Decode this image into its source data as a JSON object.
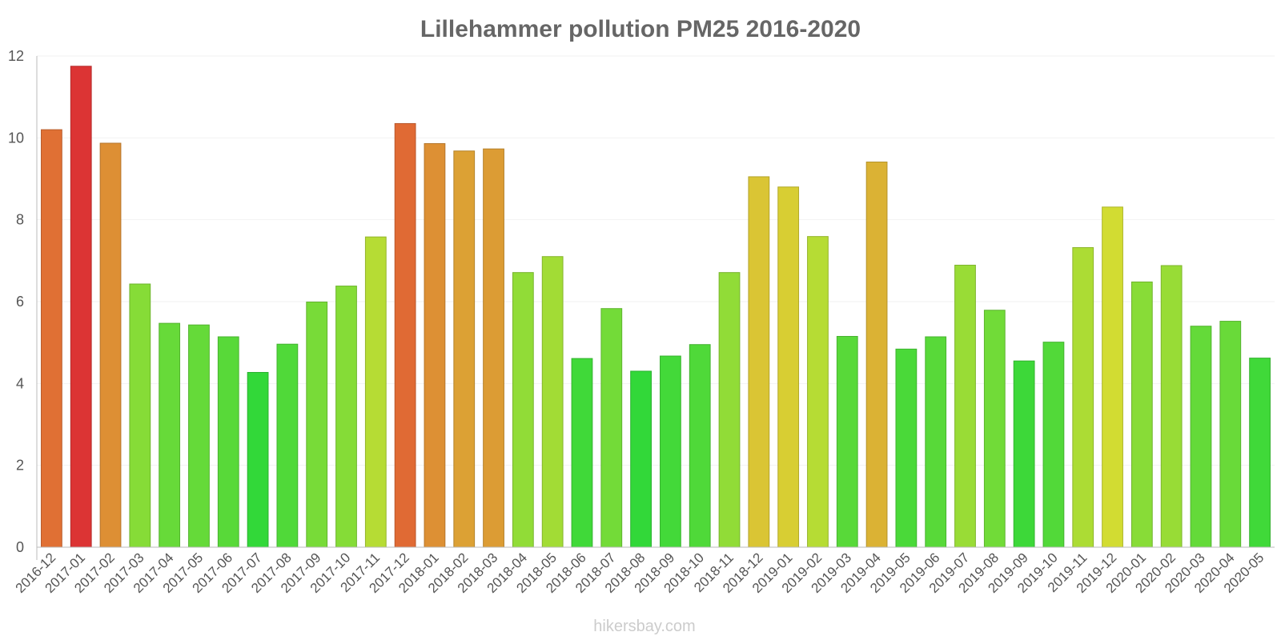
{
  "chart_data": {
    "type": "bar",
    "title": "Lillehammer pollution PM25 2016-2020",
    "xlabel": "",
    "ylabel": "",
    "ylim": [
      0,
      12
    ],
    "yticks": [
      0,
      2,
      4,
      6,
      8,
      10,
      12
    ],
    "grid": true,
    "categories": [
      "2016-12",
      "2017-01",
      "2017-02",
      "2017-03",
      "2017-04",
      "2017-05",
      "2017-06",
      "2017-07",
      "2017-08",
      "2017-09",
      "2017-10",
      "2017-11",
      "2017-12",
      "2018-01",
      "2018-02",
      "2018-03",
      "2018-04",
      "2018-05",
      "2018-06",
      "2018-07",
      "2018-08",
      "2018-09",
      "2018-10",
      "2018-11",
      "2018-12",
      "2019-01",
      "2019-02",
      "2019-03",
      "2019-04",
      "2019-05",
      "2019-06",
      "2019-07",
      "2019-08",
      "2019-09",
      "2019-10",
      "2019-11",
      "2019-12",
      "2020-01",
      "2020-02",
      "2020-03",
      "2020-04",
      "2020-05"
    ],
    "values": [
      10.2,
      11.75,
      9.87,
      6.43,
      5.47,
      5.43,
      5.14,
      4.27,
      4.96,
      5.99,
      6.38,
      7.58,
      10.35,
      9.86,
      9.68,
      9.73,
      6.71,
      7.1,
      4.61,
      5.83,
      4.3,
      4.67,
      4.95,
      6.71,
      9.05,
      8.8,
      7.59,
      5.15,
      9.41,
      4.84,
      5.14,
      6.89,
      5.79,
      4.55,
      5.01,
      7.32,
      8.31,
      6.48,
      6.88,
      5.4,
      5.52,
      4.62
    ]
  },
  "watermark": "hikersbay.com"
}
